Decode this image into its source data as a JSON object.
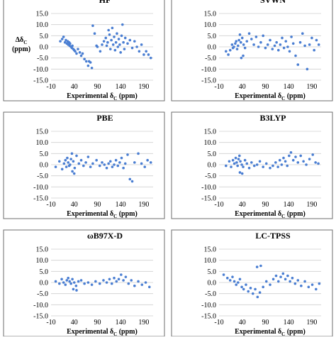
{
  "chart_data": [
    {
      "type": "scatter",
      "title": "HF",
      "xlabel": "Experimental δC (ppm)",
      "ylabel": "ΔδC (ppm)",
      "xlim": [
        -10,
        210
      ],
      "ylim": [
        -15,
        15
      ],
      "xticks": [
        "-10",
        "40",
        "90",
        "140",
        "190"
      ],
      "yticks": [
        "15.0",
        "10.0",
        "5.0",
        "0.0",
        "-5.0",
        "-10.0",
        "-15.0"
      ],
      "grid": "horizontal",
      "marker_color": "#4a7ed2",
      "x": [
        10,
        14,
        17,
        20,
        22,
        24,
        26,
        27,
        29,
        30,
        31,
        33,
        35,
        36,
        38,
        40,
        42,
        45,
        48,
        52,
        55,
        58,
        62,
        66,
        70,
        72,
        75,
        78,
        80,
        84,
        90,
        96,
        100,
        104,
        108,
        110,
        112,
        114,
        116,
        118,
        120,
        122,
        124,
        126,
        128,
        130,
        132,
        134,
        136,
        138,
        140,
        142,
        144,
        146,
        148,
        150,
        155,
        160,
        165,
        170,
        175,
        180,
        185,
        190,
        195,
        200,
        205,
        88
      ],
      "y": [
        2.5,
        3.5,
        4.5,
        2.0,
        3.0,
        1.5,
        2.5,
        1.0,
        2.0,
        0.5,
        1.5,
        0.0,
        -0.5,
        0.5,
        -1.0,
        -1.5,
        -2.0,
        -3.0,
        -1.0,
        -2.5,
        -4.0,
        -3.0,
        -5.5,
        -6.5,
        -8.5,
        -6.5,
        -7.0,
        -9.5,
        9.5,
        6.0,
        0.0,
        -2.0,
        1.0,
        2.5,
        4.0,
        0.5,
        2.0,
        7.5,
        5.5,
        -1.0,
        3.0,
        8.5,
        1.0,
        4.5,
        -1.5,
        2.0,
        6.0,
        0.0,
        3.5,
        1.0,
        -2.5,
        5.0,
        10.0,
        2.0,
        -1.0,
        4.0,
        1.5,
        3.0,
        -0.5,
        2.5,
        0.0,
        -2.0,
        1.0,
        -3.5,
        -2.0,
        -3.5,
        -5.0,
        0.5
      ]
    },
    {
      "type": "scatter",
      "title": "SVWN",
      "xlabel": "",
      "ylabel": "",
      "xlim": [
        -10,
        210
      ],
      "ylim": [
        -15,
        15
      ],
      "xticks": [
        "-10",
        "40",
        "90",
        "140",
        "190"
      ],
      "yticks": [
        "15.0",
        "10.0",
        "5.0",
        "0.0",
        "-5.0",
        "-10.0",
        "-15.0"
      ],
      "grid": "horizontal",
      "marker_color": "#4a7ed2",
      "x": [
        5,
        10,
        14,
        18,
        20,
        22,
        25,
        27,
        29,
        31,
        33,
        35,
        37,
        40,
        43,
        46,
        50,
        55,
        60,
        65,
        70,
        75,
        80,
        85,
        90,
        95,
        100,
        105,
        110,
        114,
        118,
        122,
        126,
        130,
        134,
        138,
        142,
        146,
        150,
        155,
        160,
        165,
        170,
        175,
        180,
        185,
        190,
        195,
        200,
        205,
        38,
        42
      ],
      "y": [
        -2.0,
        -3.5,
        -1.5,
        1.0,
        -0.5,
        0.0,
        1.5,
        2.5,
        -1.0,
        0.5,
        3.0,
        5.5,
        2.0,
        4.0,
        1.0,
        -0.5,
        2.5,
        6.0,
        3.5,
        1.0,
        4.5,
        0.0,
        2.0,
        5.0,
        -0.5,
        1.0,
        3.0,
        -1.0,
        0.5,
        2.0,
        -1.5,
        1.0,
        4.0,
        -0.5,
        2.5,
        0.0,
        -2.0,
        4.5,
        1.5,
        -4.0,
        -8.0,
        2.0,
        6.0,
        0.5,
        -10.0,
        1.0,
        4.0,
        -1.5,
        3.0,
        1.0,
        -5.0,
        -4.0
      ]
    },
    {
      "type": "scatter",
      "title": "PBE",
      "xlabel": "",
      "ylabel": "",
      "xlim": [
        -10,
        210
      ],
      "ylim": [
        -15,
        15
      ],
      "xticks": [
        "-10",
        "40",
        "90",
        "140",
        "190"
      ],
      "yticks": [
        "15.0",
        "10.0",
        "5.0",
        "0.0",
        "-5.0",
        "-10.0",
        "-15.0"
      ],
      "grid": "horizontal",
      "marker_color": "#4a7ed2",
      "x": [
        0,
        8,
        14,
        18,
        21,
        23,
        25,
        27,
        29,
        31,
        33,
        35,
        38,
        41,
        45,
        50,
        55,
        60,
        65,
        70,
        75,
        80,
        88,
        95,
        100,
        105,
        110,
        114,
        118,
        122,
        126,
        130,
        134,
        138,
        142,
        146,
        150,
        155,
        160,
        165,
        170,
        178,
        185,
        192,
        198,
        205,
        36,
        40
      ],
      "y": [
        -1.0,
        1.5,
        -2.0,
        0.5,
        2.0,
        -1.0,
        3.0,
        1.0,
        -0.5,
        0.0,
        2.5,
        5.0,
        1.5,
        -1.5,
        4.0,
        0.5,
        2.0,
        -0.5,
        1.0,
        3.5,
        -1.0,
        0.5,
        2.0,
        -0.5,
        1.0,
        0.0,
        -1.5,
        0.5,
        1.5,
        -1.0,
        0.0,
        2.0,
        -0.5,
        1.0,
        3.0,
        -1.5,
        0.5,
        4.5,
        -6.5,
        -7.5,
        1.0,
        5.0,
        0.5,
        -1.0,
        2.0,
        1.0,
        -3.0,
        -4.0
      ]
    },
    {
      "type": "scatter",
      "title": "B3LYP",
      "xlabel": "",
      "ylabel": "",
      "xlim": [
        -10,
        210
      ],
      "ylim": [
        -15,
        15
      ],
      "xticks": [
        "-10",
        "40",
        "90",
        "140",
        "190"
      ],
      "yticks": [
        "15.0",
        "10.0",
        "5.0",
        "0.0",
        "-5.0",
        "-10.0",
        "-15.0"
      ],
      "grid": "horizontal",
      "marker_color": "#4a7ed2",
      "x": [
        5,
        12,
        16,
        20,
        23,
        26,
        28,
        30,
        32,
        34,
        36,
        39,
        42,
        46,
        50,
        55,
        60,
        66,
        72,
        78,
        85,
        92,
        100,
        106,
        112,
        117,
        121,
        125,
        129,
        133,
        137,
        141,
        145,
        150,
        155,
        160,
        166,
        172,
        178,
        185,
        192,
        198,
        204,
        35,
        40
      ],
      "y": [
        -0.5,
        1.5,
        -1.0,
        2.0,
        0.5,
        3.0,
        1.0,
        -0.5,
        2.5,
        4.0,
        1.5,
        0.0,
        -1.0,
        2.0,
        0.5,
        -1.5,
        1.0,
        -0.5,
        0.0,
        1.5,
        -1.0,
        0.5,
        -1.5,
        -0.5,
        1.0,
        -1.0,
        2.0,
        0.0,
        3.0,
        1.5,
        -0.5,
        4.0,
        5.5,
        2.0,
        3.5,
        1.0,
        4.0,
        1.5,
        0.0,
        2.5,
        4.5,
        1.0,
        0.5,
        -3.5,
        -4.0
      ]
    },
    {
      "type": "scatter",
      "title": "ωB97X-D",
      "xlabel": "",
      "ylabel": "",
      "xlim": [
        -10,
        210
      ],
      "ylim": [
        -15,
        15
      ],
      "xticks": [
        "-10",
        "40",
        "90",
        "140",
        "190"
      ],
      "yticks": [
        "15.0",
        "10.0",
        "5.0",
        "0.0",
        "-5.0",
        "-10.0",
        "-15.0"
      ],
      "grid": "horizontal",
      "marker_color": "#4a7ed2",
      "x": [
        0,
        8,
        13,
        17,
        21,
        24,
        27,
        30,
        33,
        36,
        40,
        44,
        49,
        55,
        62,
        70,
        78,
        86,
        95,
        103,
        110,
        116,
        121,
        126,
        131,
        136,
        141,
        146,
        151,
        157,
        163,
        170,
        178,
        186,
        194,
        202,
        38,
        45
      ],
      "y": [
        0.5,
        -0.5,
        1.5,
        0.0,
        -1.0,
        1.0,
        2.0,
        0.5,
        -0.5,
        1.5,
        0.0,
        -1.5,
        0.5,
        1.0,
        -0.5,
        0.0,
        -1.0,
        0.5,
        -0.5,
        1.0,
        0.0,
        1.5,
        -0.5,
        2.0,
        0.5,
        1.5,
        3.5,
        1.0,
        2.5,
        -0.5,
        1.0,
        -1.5,
        0.5,
        -1.0,
        0.0,
        -2.0,
        -3.0,
        -3.5
      ]
    },
    {
      "type": "scatter",
      "title": "LC-TPSS",
      "xlabel": "",
      "ylabel": "",
      "xlim": [
        -10,
        210
      ],
      "ylim": [
        -15,
        15
      ],
      "xticks": [
        "-10",
        "40",
        "90",
        "140",
        "190"
      ],
      "yticks": [
        "15.0",
        "10.0",
        "5.0",
        "0.0",
        "-5.0",
        "-10.0",
        "-15.0"
      ],
      "grid": "horizontal",
      "marker_color": "#4a7ed2",
      "x": [
        0,
        8,
        14,
        19,
        23,
        27,
        31,
        35,
        39,
        43,
        48,
        53,
        58,
        63,
        68,
        73,
        78,
        85,
        92,
        100,
        107,
        113,
        118,
        123,
        128,
        133,
        138,
        143,
        148,
        154,
        160,
        167,
        175,
        183,
        191,
        199,
        206,
        72,
        80
      ],
      "y": [
        3.5,
        2.0,
        1.0,
        2.5,
        0.5,
        -1.0,
        0.0,
        1.5,
        -2.0,
        -3.0,
        -1.0,
        -4.0,
        -2.5,
        -5.0,
        -3.0,
        -6.5,
        -4.5,
        -2.0,
        0.5,
        -1.0,
        1.5,
        3.0,
        0.5,
        2.5,
        4.0,
        1.5,
        3.0,
        0.5,
        2.0,
        -0.5,
        1.0,
        -1.5,
        0.5,
        -2.0,
        -1.0,
        -3.0,
        -0.5,
        7.0,
        7.5
      ]
    }
  ]
}
